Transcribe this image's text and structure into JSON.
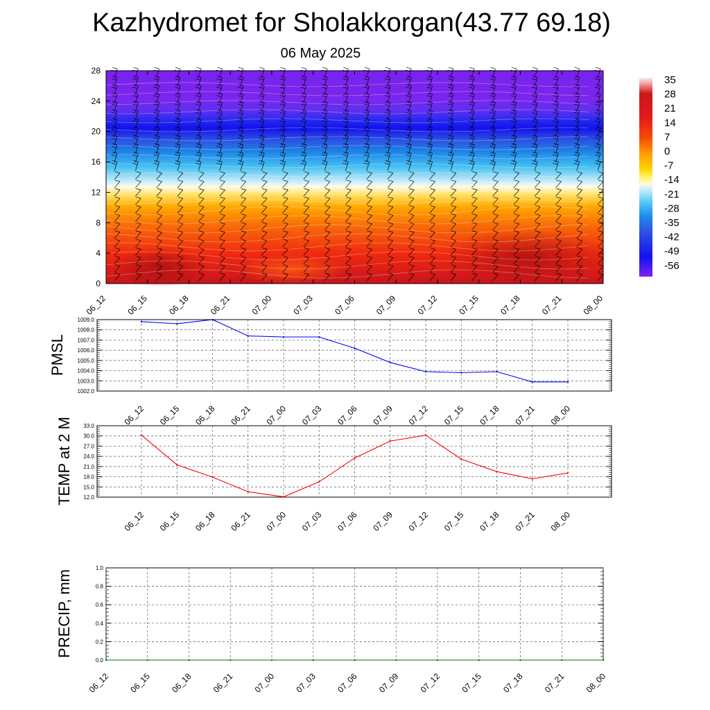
{
  "title": "Kazhydromet for Sholakkorgan(43.77 69.18)",
  "subtitle": "06 May 2025",
  "colors": {
    "pmsl_line": "#0000ff",
    "temp_line": "#ff0000",
    "precip_line": "#007700",
    "grid": "#000000",
    "wind_barb": "#000000"
  },
  "chart_data": [
    {
      "type": "heatmap",
      "name": "temperature-cross-section",
      "title": "",
      "xlabel": "",
      "ylabel": "",
      "x": [
        "06_12",
        "06_15",
        "06_18",
        "06_21",
        "07_00",
        "07_03",
        "07_06",
        "07_09",
        "07_12",
        "07_15",
        "07_18",
        "07_21",
        "08_00"
      ],
      "ylim": [
        0,
        28
      ],
      "yticks": [
        0,
        4,
        8,
        12,
        16,
        20,
        24,
        28
      ],
      "overlay": "wind-barbs",
      "colorbar": {
        "range": [
          -60,
          40
        ],
        "tick_labels": [
          "35",
          "28",
          "21",
          "14",
          "7",
          "0",
          "-7",
          "-14",
          "-21",
          "-28",
          "-35",
          "-42",
          "-49",
          "-56"
        ],
        "tick_values": [
          35,
          28,
          21,
          14,
          7,
          0,
          -7,
          -14,
          -21,
          -28,
          -35,
          -42,
          -49,
          -56
        ]
      },
      "temperature_profile": [
        {
          "level": 0,
          "value": 30
        },
        {
          "level": 4,
          "value": 23
        },
        {
          "level": 8,
          "value": 12
        },
        {
          "level": 11,
          "value": 2
        },
        {
          "level": 13,
          "value": -12
        },
        {
          "level": 16,
          "value": -28
        },
        {
          "level": 20,
          "value": -57
        },
        {
          "level": 22,
          "value": -52
        },
        {
          "level": 24,
          "value": -56
        },
        {
          "level": 28,
          "value": -58
        }
      ],
      "grid": false
    },
    {
      "type": "line",
      "name": "pmsl",
      "ylabel": "PMSL",
      "categories": [
        "06_12",
        "06_15",
        "06_18",
        "06_21",
        "07_00",
        "07_03",
        "07_06",
        "07_09",
        "07_12",
        "07_15",
        "07_18",
        "07_21",
        "08_00"
      ],
      "ylim": [
        1002.0,
        1009.0
      ],
      "yticks": [
        "1002.0",
        "1003.0",
        "1004.0",
        "1005.0",
        "1006.0",
        "1007.0",
        "1008.0",
        "1009.0"
      ],
      "series": [
        {
          "values": [
            1008.8,
            1008.6,
            1009.0,
            1007.4,
            1007.3,
            1007.3,
            1006.2,
            1004.8,
            1003.9,
            1003.8,
            1003.9,
            1002.9,
            1002.9
          ]
        }
      ],
      "grid": true
    },
    {
      "type": "line",
      "name": "temp-2m",
      "ylabel": "TEMP at 2 M",
      "categories": [
        "06_12",
        "06_15",
        "06_18",
        "06_21",
        "07_00",
        "07_03",
        "07_06",
        "07_09",
        "07_12",
        "07_15",
        "07_18",
        "07_21",
        "08_00"
      ],
      "ylim": [
        12.0,
        33.0
      ],
      "yticks": [
        "12.0",
        "15.0",
        "18.0",
        "21.0",
        "24.0",
        "27.0",
        "30.0",
        "33.0"
      ],
      "series": [
        {
          "values": [
            30.2,
            21.5,
            17.9,
            13.6,
            12.1,
            16.5,
            23.5,
            28.5,
            30.2,
            23.2,
            19.5,
            17.4,
            19.1
          ]
        }
      ],
      "grid": true
    },
    {
      "type": "line",
      "name": "precip",
      "ylabel": "PRECIP, mm",
      "categories": [
        "06_12",
        "06_15",
        "06_18",
        "06_21",
        "07_00",
        "07_03",
        "07_06",
        "07_09",
        "07_12",
        "07_15",
        "07_18",
        "07_21",
        "08_00"
      ],
      "ylim": [
        0.0,
        1.0
      ],
      "yticks": [
        "0.0",
        "0.2",
        "0.4",
        "0.6",
        "0.8",
        "1.0"
      ],
      "series": [
        {
          "values": [
            0,
            0,
            0,
            0,
            0,
            0,
            0,
            0,
            0,
            0,
            0,
            0,
            0
          ]
        }
      ],
      "grid": true
    }
  ]
}
